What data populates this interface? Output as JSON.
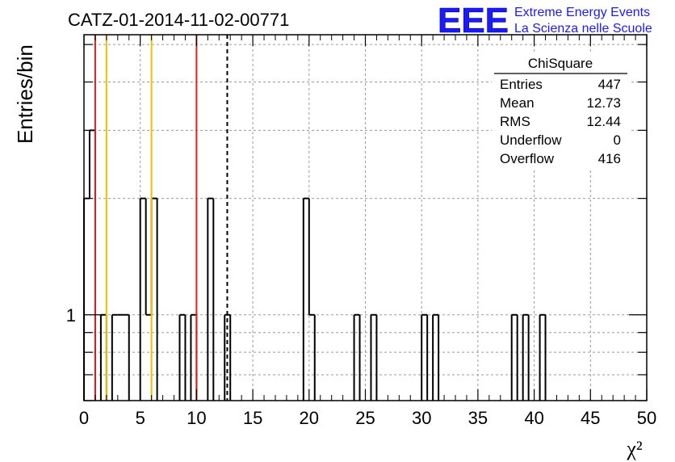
{
  "chart_data": {
    "type": "bar",
    "title": "CATZ-01-2014-11-02-00771",
    "xlabel": "χ²",
    "ylabel": "Entries/bin",
    "xlim": [
      0,
      50
    ],
    "yscale": "log",
    "ylim": [
      0.6,
      5.3
    ],
    "x_ticks": [
      "0",
      "5",
      "10",
      "15",
      "20",
      "25",
      "30",
      "35",
      "40",
      "45",
      "50"
    ],
    "y_ticks": [
      "1"
    ],
    "grid": true,
    "bin_width": 0.5,
    "histogram": {
      "bin_edges": [
        0,
        0.5,
        1,
        1.5,
        2,
        2.5,
        3,
        3.5,
        4,
        4.5,
        5,
        5.5,
        6,
        6.5,
        7,
        7.5,
        8,
        8.5,
        9,
        9.5,
        10,
        10.5,
        11,
        11.5,
        12,
        12.5,
        13,
        13.5,
        14,
        14.5,
        15,
        15.5,
        16,
        16.5,
        17,
        17.5,
        18,
        18.5,
        19,
        19.5,
        20,
        20.5,
        21,
        21.5,
        22,
        22.5,
        23,
        23.5,
        24,
        24.5,
        25,
        25.5,
        26,
        26.5,
        27,
        27.5,
        28,
        28.5,
        29,
        29.5,
        30,
        30.5,
        31,
        31.5,
        32,
        32.5,
        33,
        33.5,
        34,
        34.5,
        35,
        35.5,
        36,
        36.5,
        37,
        37.5,
        38,
        38.5,
        39,
        39.5,
        40,
        40.5,
        41
      ],
      "counts": [
        2,
        3,
        0,
        1,
        0,
        1,
        1,
        1,
        0,
        0,
        2,
        1,
        2,
        0,
        0,
        0,
        0,
        1,
        0,
        1,
        0,
        0,
        2,
        0,
        0,
        1,
        0,
        0,
        0,
        0,
        0,
        0,
        0,
        0,
        0,
        0,
        0,
        0,
        0,
        2,
        1,
        0,
        0,
        0,
        0,
        0,
        0,
        0,
        1,
        0,
        0,
        1,
        0,
        0,
        0,
        0,
        0,
        0,
        0,
        0,
        1,
        0,
        1,
        0,
        0,
        0,
        0,
        0,
        0,
        0,
        0,
        0,
        0,
        0,
        0,
        0,
        1,
        0,
        1,
        0,
        0,
        1
      ]
    },
    "vertical_lines": [
      {
        "x": 1.0,
        "color": "#e02020",
        "style": "solid"
      },
      {
        "x": 2.0,
        "color": "#f0c000",
        "style": "solid"
      },
      {
        "x": 6.0,
        "color": "#f0c000",
        "style": "solid"
      },
      {
        "x": 10.0,
        "color": "#e02020",
        "style": "solid"
      },
      {
        "x": 12.73,
        "color": "#000000",
        "style": "dashed"
      }
    ],
    "stats_box": {
      "title": "ChiSquare",
      "rows": [
        {
          "label": "Entries",
          "value": "447"
        },
        {
          "label": "Mean",
          "value": "12.73"
        },
        {
          "label": "RMS",
          "value": "12.44"
        },
        {
          "label": "Underflow",
          "value": "0"
        },
        {
          "label": "Overflow",
          "value": "416"
        }
      ]
    }
  },
  "logo": {
    "text": "EEE",
    "line1": "Extreme Energy Events",
    "line2": "La Scienza nelle Scuole",
    "color": "#1a1aff"
  }
}
